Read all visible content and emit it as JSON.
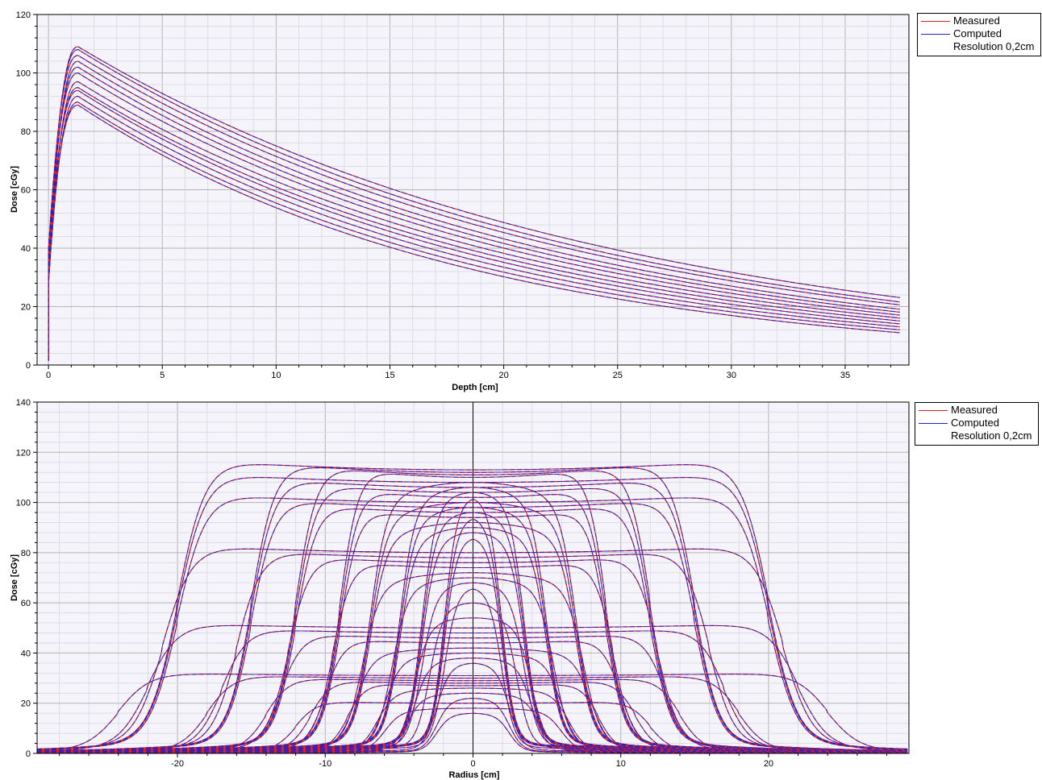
{
  "colors": {
    "measured": "#e02020",
    "computed": "#2020c8",
    "background": "#f4f4fa",
    "grid_major": "#b4b4b4",
    "grid_minor": "#dcdce6"
  },
  "chart_data": [
    {
      "type": "line",
      "xlabel": "Depth [cm]",
      "ylabel": "Dose [cGy]",
      "xlim": [
        -0.5,
        37.8
      ],
      "ylim": [
        0,
        120
      ],
      "xticks": [
        0,
        5,
        10,
        15,
        20,
        25,
        30,
        35
      ],
      "yticks": [
        0,
        20,
        40,
        60,
        80,
        100,
        120
      ],
      "grid": true,
      "legend": {
        "placement": "outside-top-right",
        "entries": [
          "Measured",
          "Computed",
          "Resolution 0,2cm"
        ]
      },
      "curve_model": "percent-depth-dose build-up then exponential fall-off",
      "series": [
        {
          "name": "Measured / Computed",
          "peak_dose": 109,
          "dose_at_37_5cm": 23
        },
        {
          "name": "Measured / Computed",
          "peak_dose": 108,
          "dose_at_37_5cm": 21.5
        },
        {
          "name": "Measured / Computed",
          "peak_dose": 106,
          "dose_at_37_5cm": 20.5
        },
        {
          "name": "Measured / Computed",
          "peak_dose": 104,
          "dose_at_37_5cm": 19
        },
        {
          "name": "Measured / Computed",
          "peak_dose": 102,
          "dose_at_37_5cm": 18
        },
        {
          "name": "Measured / Computed",
          "peak_dose": 100,
          "dose_at_37_5cm": 17
        },
        {
          "name": "Measured / Computed",
          "peak_dose": 97,
          "dose_at_37_5cm": 16
        },
        {
          "name": "Measured / Computed",
          "peak_dose": 95,
          "dose_at_37_5cm": 15
        },
        {
          "name": "Measured / Computed",
          "peak_dose": 94,
          "dose_at_37_5cm": 14
        },
        {
          "name": "Measured / Computed",
          "peak_dose": 92,
          "dose_at_37_5cm": 13
        },
        {
          "name": "Measured / Computed",
          "peak_dose": 90,
          "dose_at_37_5cm": 12
        },
        {
          "name": "Measured / Computed",
          "peak_dose": 89,
          "dose_at_37_5cm": 11
        }
      ]
    },
    {
      "type": "line",
      "xlabel": "Radius [cm]",
      "ylabel": "Dose [cGy]",
      "xlim": [
        -29.5,
        29.5
      ],
      "ylim": [
        0,
        140
      ],
      "xticks": [
        -20,
        -10,
        0,
        10,
        20
      ],
      "yticks": [
        0,
        20,
        40,
        60,
        80,
        100,
        120,
        140
      ],
      "grid": true,
      "legend": {
        "placement": "outside-top-right",
        "entries": [
          "Measured",
          "Computed",
          "Resolution 0,2cm"
        ]
      },
      "curve_model": "symmetric beam profile: flat top with penumbra edges and low tail",
      "series": [
        {
          "half_width": 20,
          "height": 113
        },
        {
          "half_width": 15,
          "height": 112
        },
        {
          "half_width": 12,
          "height": 111
        },
        {
          "half_width": 9,
          "height": 110
        },
        {
          "half_width": 7,
          "height": 108
        },
        {
          "half_width": 5,
          "height": 106
        },
        {
          "half_width": 3.5,
          "height": 104
        },
        {
          "half_width": 2,
          "height": 102
        },
        {
          "half_width": 20,
          "height": 108
        },
        {
          "half_width": 15,
          "height": 106
        },
        {
          "half_width": 12,
          "height": 104
        },
        {
          "half_width": 9,
          "height": 102
        },
        {
          "half_width": 7,
          "height": 100
        },
        {
          "half_width": 5,
          "height": 98
        },
        {
          "half_width": 3.5,
          "height": 96
        },
        {
          "half_width": 2,
          "height": 94
        },
        {
          "half_width": 20,
          "height": 100
        },
        {
          "half_width": 15,
          "height": 98
        },
        {
          "half_width": 12,
          "height": 96
        },
        {
          "half_width": 9,
          "height": 94
        },
        {
          "half_width": 7,
          "height": 92
        },
        {
          "half_width": 5,
          "height": 90
        },
        {
          "half_width": 3.5,
          "height": 88
        },
        {
          "half_width": 2,
          "height": 86
        },
        {
          "half_width": 21,
          "height": 80
        },
        {
          "half_width": 16,
          "height": 78
        },
        {
          "half_width": 12.5,
          "height": 76
        },
        {
          "half_width": 9.5,
          "height": 74
        },
        {
          "half_width": 7.5,
          "height": 72
        },
        {
          "half_width": 5.5,
          "height": 70
        },
        {
          "half_width": 3.5,
          "height": 68
        },
        {
          "half_width": 2,
          "height": 66
        },
        {
          "half_width": 22,
          "height": 50
        },
        {
          "half_width": 17,
          "height": 48
        },
        {
          "half_width": 13,
          "height": 46
        },
        {
          "half_width": 10,
          "height": 44
        },
        {
          "half_width": 8,
          "height": 42
        },
        {
          "half_width": 6,
          "height": 40
        },
        {
          "half_width": 4,
          "height": 38
        },
        {
          "half_width": 2.5,
          "height": 36
        },
        {
          "half_width": 24,
          "height": 31
        },
        {
          "half_width": 18,
          "height": 30
        },
        {
          "half_width": 14,
          "height": 29
        },
        {
          "half_width": 11,
          "height": 28
        },
        {
          "half_width": 8.5,
          "height": 27
        },
        {
          "half_width": 6.5,
          "height": 26
        },
        {
          "half_width": 4.5,
          "height": 24
        },
        {
          "half_width": 2.5,
          "height": 22
        },
        {
          "half_width": 12,
          "height": 20
        },
        {
          "half_width": 6,
          "height": 18
        },
        {
          "half_width": 2.5,
          "height": 16
        },
        {
          "half_width": 4,
          "height": 54
        },
        {
          "half_width": 3,
          "height": 60
        }
      ]
    }
  ]
}
